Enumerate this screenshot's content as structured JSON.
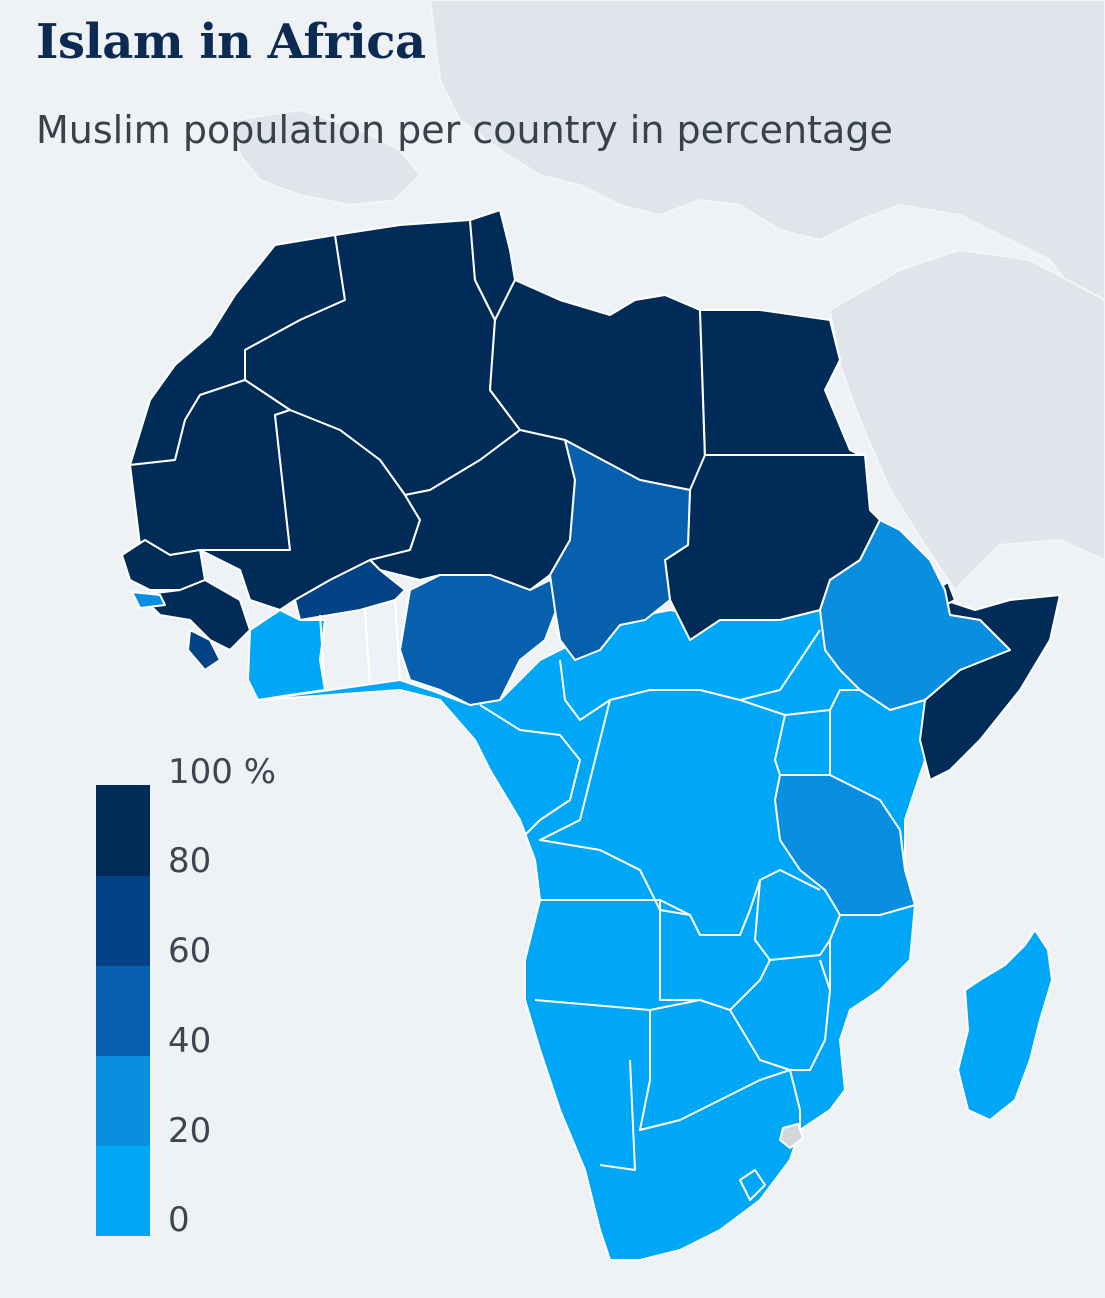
{
  "title": "Islam in Africa",
  "subtitle": "Muslim population per country in percentage",
  "legend": {
    "labels": [
      "100 %",
      "80",
      "60",
      "40",
      "20",
      "0"
    ],
    "bins": [
      {
        "range": [
          80,
          100
        ],
        "color": "#022c58"
      },
      {
        "range": [
          60,
          80
        ],
        "color": "#044286"
      },
      {
        "range": [
          40,
          60
        ],
        "color": "#0660ad"
      },
      {
        "range": [
          20,
          40
        ],
        "color": "#0a8fe0"
      },
      {
        "range": [
          0,
          20
        ],
        "color": "#00a7f6"
      }
    ]
  },
  "colors": {
    "background": "#eef2f5",
    "context_land": "#dfe5eb",
    "border": "#ffffff",
    "no_data": "#cfd6dc"
  }
}
